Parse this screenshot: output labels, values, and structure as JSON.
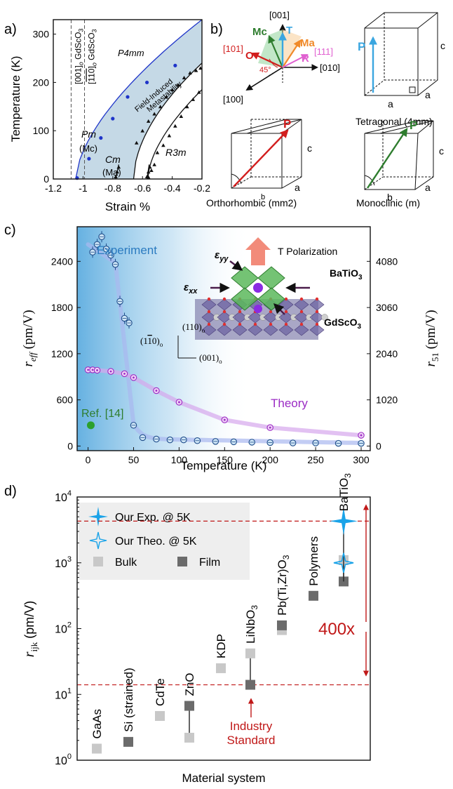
{
  "panel_a": {
    "label": "a)",
    "chart_data": {
      "type": "scatter",
      "xlabel": "Strain %",
      "ylabel": "Temperature (K)",
      "xlim": [
        -1.2,
        -0.2
      ],
      "ylim": [
        0,
        330
      ],
      "xticks": [
        "-1.2",
        "-1",
        "-0.8",
        "-0.6",
        "-0.4",
        "-0.2"
      ],
      "yticks": [
        "0",
        "100",
        "200",
        "300"
      ],
      "vlines": [
        {
          "x": -1.08,
          "label": "[001]o GdScO3",
          "bar": "001",
          "sub": "o",
          "rest": " GdScO",
          "num": "3"
        },
        {
          "x": -0.99,
          "label": "[110]o GdScO3",
          "bar": "110",
          "sub": "o",
          "rest": " GdScO",
          "num": "3"
        }
      ],
      "region_label_1": "Field-Induced",
      "region_label_2": "Metastability",
      "phases": {
        "p4mm": "P4mm",
        "pm": "Pm",
        "mc": "(Mc)",
        "cm": "Cm",
        "ma": "(Ma)",
        "r3m": "R3m"
      },
      "series": [
        {
          "name": "upper boundary",
          "color": "#1f35c9",
          "x": [
            -1.04,
            -0.96,
            -0.88,
            -0.8,
            -0.7,
            -0.57,
            -0.38
          ],
          "y": [
            2,
            42,
            85,
            125,
            170,
            200,
            235
          ]
        },
        {
          "name": "Mc boundary",
          "color": "#111111",
          "x": [
            -0.64,
            -0.6,
            -0.56,
            -0.52,
            -0.48,
            -0.44,
            -0.4,
            -0.36,
            -0.32,
            -0.28,
            -0.24,
            -0.21
          ],
          "y": [
            75,
            100,
            120,
            135,
            150,
            170,
            185,
            195,
            210,
            220,
            225,
            230
          ]
        },
        {
          "name": "Ma boundary",
          "color": "#111111",
          "x": [
            -0.56,
            -0.54,
            -0.52,
            -0.5,
            -0.46,
            -0.42,
            -0.38,
            -0.34,
            -0.3,
            -0.26,
            -0.22
          ],
          "y": [
            4,
            18,
            30,
            55,
            70,
            90,
            110,
            130,
            150,
            165,
            180
          ]
        },
        {
          "name": "R3m boundary",
          "color": "#111111",
          "x": [
            -0.78,
            -0.77,
            -0.76,
            -0.57,
            -0.56,
            -0.55
          ],
          "y": [
            5,
            15,
            25,
            5,
            15,
            25
          ]
        }
      ]
    }
  },
  "panel_b": {
    "label": "b)",
    "axes": {
      "z": "[001]",
      "y": "[010]",
      "x": "[100]",
      "o": "[101]",
      "o_short": "O",
      "r": "[111]",
      "r_short": "R",
      "mc": "Mc",
      "t": "T",
      "ma": "Ma",
      "angle": "45°"
    },
    "tetragonal": {
      "title": "Tetragonal (4mm)",
      "p": "P",
      "a1": "a",
      "a2": "a",
      "c": "c"
    },
    "orthorhombic": {
      "title": "Orthorhombic (mm2)",
      "p": "P",
      "a": "a",
      "b": "b",
      "c": "c"
    },
    "monoclinic": {
      "title": "Monoclinic (m)",
      "p": "P",
      "a": "a",
      "b": "b",
      "c": "c"
    },
    "colors": {
      "o": "#d21e1e",
      "mc": "#2e7d2e",
      "t": "#3aa6e0",
      "ma": "#f08a2a",
      "r": "#e060d0"
    }
  },
  "panel_c": {
    "label": "c)",
    "chart_data": {
      "type": "line",
      "xlabel": "Temperature (K)",
      "ylabel_left": "reff (pm/V)",
      "ylabel_right": "r51 (pm/V)",
      "xlim": [
        -12,
        310
      ],
      "ylim": [
        -60,
        2850
      ],
      "xticks": [
        "0",
        "50",
        "100",
        "150",
        "200",
        "250",
        "300"
      ],
      "yticks_left": [
        "0",
        "600",
        "1200",
        "1800",
        "2400"
      ],
      "yticks_right": [
        "0",
        "1020",
        "2040",
        "3060",
        "4080"
      ],
      "series": [
        {
          "name": "Experiment",
          "color": "#2b6cb0",
          "x": [
            5,
            10,
            15,
            20,
            25,
            30,
            35,
            40,
            45,
            50,
            60,
            75,
            90,
            105,
            120,
            140,
            160,
            180,
            200,
            225,
            250,
            275,
            300
          ],
          "y": [
            2520,
            2620,
            2720,
            2560,
            2480,
            2360,
            1880,
            1660,
            1600,
            270,
            110,
            90,
            80,
            80,
            70,
            60,
            55,
            50,
            45,
            40,
            40,
            35,
            35
          ]
        },
        {
          "name": "Theory",
          "color": "#9b2bc4",
          "x": [
            0,
            5,
            10,
            25,
            40,
            50,
            75,
            100,
            150,
            200,
            300
          ],
          "y": [
            990,
            990,
            985,
            970,
            940,
            890,
            720,
            570,
            340,
            240,
            140
          ]
        },
        {
          "name": "Ref. [14]",
          "color": "#2ca02c",
          "x": [
            3
          ],
          "y": [
            270
          ]
        }
      ],
      "annotation_polarization": "T Polarization",
      "annotation_eyy": "ε",
      "annotation_eyy_sub": "yy",
      "annotation_exx": "ε",
      "annotation_exx_sub": "xx",
      "annotation_bto": "BaTiO",
      "annotation_bto_sub": "3",
      "annotation_gso": "GdScO",
      "annotation_gso_sub": "3",
      "axis_110_up": "(110)",
      "axis_110_up_sub": "o",
      "axis_110_left": "(1",
      "axis_110_left_bar": "1",
      "axis_110_left_end": "0)",
      "axis_110_left_sub": "o",
      "axis_001": "(001)",
      "axis_001_sub": "o"
    }
  },
  "panel_d": {
    "label": "d)",
    "chart_data": {
      "type": "scatter",
      "xlabel": "Material system",
      "ylabel": "r",
      "ylabel_sub": "ijk",
      "ylabel_unit": " (pm/V)",
      "yscale": "log",
      "ylim": [
        1,
        10000
      ],
      "ytick_base": "10",
      "ytick_exponents": [
        "0",
        "1",
        "2",
        "3",
        "4"
      ],
      "legend": [
        {
          "label": "Our Exp. @ 5K",
          "marker": "star-filled"
        },
        {
          "label": "Our Theo. @ 5K",
          "marker": "star-open"
        },
        {
          "label": "Bulk",
          "marker": "square-light"
        },
        {
          "label": "Film",
          "marker": "square-dark"
        }
      ],
      "materials": [
        {
          "name": "GaAs",
          "bulk": 1.5,
          "film": null
        },
        {
          "name": "Si (strained)",
          "bulk": null,
          "film": 1.9
        },
        {
          "name": "CdTe",
          "bulk": 4.7,
          "film": null
        },
        {
          "name": "ZnO",
          "bulk": 2.2,
          "film": 6.7
        },
        {
          "name": "KDP",
          "bulk": 25,
          "film": null
        },
        {
          "name": "LiNbO3",
          "bulk": 42,
          "film": 14
        },
        {
          "name": "Pb(Ti,Zr)O3",
          "bulk": 95,
          "film": 112
        },
        {
          "name": "Polymers",
          "bulk": null,
          "film": 315
        },
        {
          "name": "BaTiO3",
          "bulk": 1100,
          "film": 520,
          "exp": 4300,
          "theo": 1000
        }
      ],
      "reference_lines": [
        4300,
        14
      ],
      "ratio_label": "400x",
      "industry_label_1": "Industry",
      "industry_label_2": "Standard",
      "colors": {
        "accent": "#c01818",
        "star": "#1aa3e8",
        "bulk": "#c8c8c8",
        "film": "#6b6b6b"
      }
    }
  }
}
